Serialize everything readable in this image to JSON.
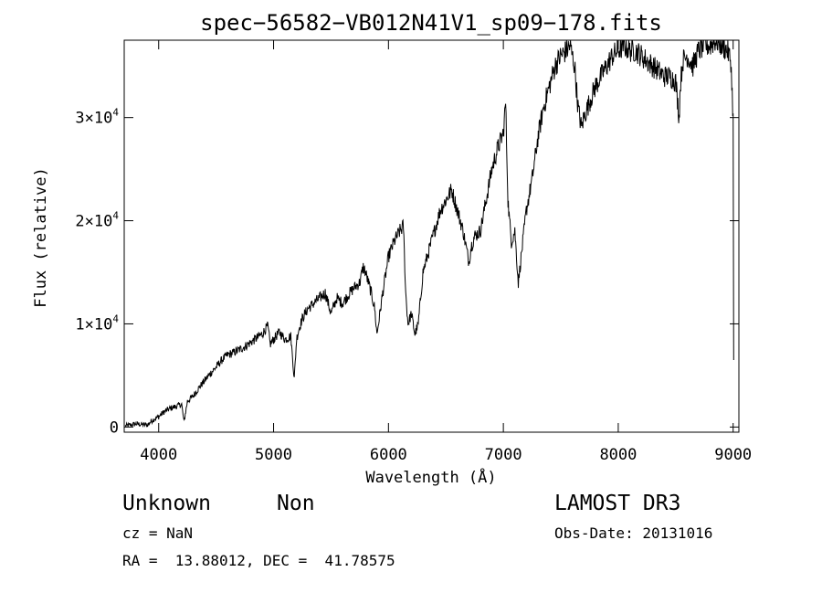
{
  "chart_data": {
    "type": "line",
    "title": "spec−56582−VB012N41V1_sp09−178.fits",
    "xlabel": "Wavelength (Å)",
    "ylabel": "Flux (relative)",
    "xlim": [
      3700,
      9050
    ],
    "ylim": [
      -500,
      37500
    ],
    "xticks": [
      4000,
      5000,
      6000,
      7000,
      8000,
      9000
    ],
    "yticks": [
      {
        "value": 0,
        "label": "0"
      },
      {
        "value": 10000,
        "label": "1×10^4"
      },
      {
        "value": 20000,
        "label": "2×10^4"
      },
      {
        "value": 30000,
        "label": "3×10^4"
      }
    ],
    "series": [
      {
        "name": "flux",
        "x": [
          3710,
          3800,
          3900,
          3950,
          4000,
          4050,
          4100,
          4150,
          4200,
          4220,
          4250,
          4300,
          4350,
          4400,
          4450,
          4500,
          4550,
          4600,
          4650,
          4700,
          4750,
          4800,
          4850,
          4900,
          4950,
          4970,
          5000,
          5050,
          5100,
          5150,
          5180,
          5200,
          5220,
          5250,
          5300,
          5350,
          5400,
          5450,
          5500,
          5550,
          5600,
          5650,
          5700,
          5750,
          5780,
          5800,
          5850,
          5880,
          5900,
          5950,
          6000,
          6050,
          6100,
          6130,
          6150,
          6170,
          6200,
          6230,
          6260,
          6300,
          6350,
          6400,
          6450,
          6500,
          6550,
          6600,
          6650,
          6700,
          6720,
          6750,
          6800,
          6850,
          6900,
          6950,
          7000,
          7020,
          7040,
          7050,
          7070,
          7100,
          7130,
          7150,
          7200,
          7250,
          7300,
          7350,
          7400,
          7450,
          7500,
          7550,
          7580,
          7620,
          7650,
          7680,
          7700,
          7750,
          7800,
          7850,
          7900,
          7950,
          8000,
          8050,
          8100,
          8150,
          8200,
          8250,
          8300,
          8350,
          8400,
          8450,
          8500,
          8530,
          8540,
          8560,
          8600,
          8650,
          8700,
          8750,
          8800,
          8850,
          8900,
          8950,
          8980,
          9000,
          9005
        ],
        "y": [
          100,
          300,
          200,
          700,
          1000,
          1500,
          1800,
          2000,
          2200,
          500,
          2500,
          3000,
          3800,
          4500,
          5200,
          5800,
          6500,
          7000,
          7200,
          7500,
          7800,
          8200,
          8600,
          9000,
          9800,
          8000,
          8500,
          9200,
          8500,
          8800,
          4700,
          8500,
          9500,
          10500,
          11500,
          12000,
          12500,
          13000,
          11000,
          12500,
          12000,
          12800,
          13500,
          14000,
          15500,
          15000,
          13000,
          11500,
          9000,
          13000,
          16500,
          18000,
          19000,
          19500,
          13000,
          10000,
          11000,
          9000,
          10000,
          15000,
          17000,
          19000,
          21000,
          22000,
          23000,
          21000,
          19000,
          16000,
          17500,
          18500,
          19000,
          22000,
          25000,
          27000,
          28500,
          31500,
          22000,
          20500,
          18000,
          19000,
          14000,
          16000,
          21000,
          24000,
          28000,
          31000,
          33000,
          35000,
          36000,
          36500,
          37000,
          35000,
          31000,
          29000,
          30000,
          31500,
          33000,
          34000,
          35000,
          36000,
          36500,
          37000,
          36500,
          36500,
          36000,
          35500,
          35000,
          34500,
          34000,
          34000,
          33500,
          30000,
          33000,
          35500,
          36000,
          35000,
          36500,
          37000,
          37000,
          37500,
          37000,
          36500,
          35500,
          30000,
          6500
        ]
      }
    ]
  },
  "info": {
    "object_class": "Unknown",
    "subclass": "Non",
    "cz": "cz = NaN",
    "coords": "RA =  13.88012, DEC =  41.78575",
    "survey": "LAMOST DR3",
    "obs_date": "Obs-Date: 20131016"
  }
}
